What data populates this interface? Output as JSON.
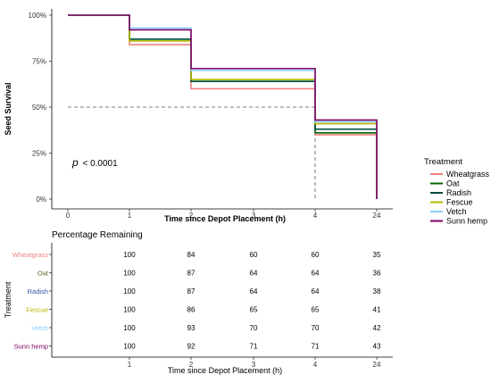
{
  "chart_data": [
    {
      "type": "line",
      "subtype": "step (Kaplan-Meier)",
      "x": [
        "0",
        "1",
        "2",
        "3",
        "4",
        "24"
      ],
      "xlabel": "Time since Depot Placement (h)",
      "ylabel": "Seed Survival",
      "yticks": [
        "0%",
        "25%",
        "50%",
        "75%",
        "100%"
      ],
      "ylim": [
        0,
        100
      ],
      "annotation": {
        "p_symbol": "p",
        "p_text": "< 0.0001"
      },
      "median_line": 50,
      "legend_title": "Treatment",
      "legend_position": "right",
      "series": [
        {
          "name": "Wheatgrass",
          "color": "#f08080",
          "values": [
            100,
            84,
            60,
            60,
            35,
            35
          ]
        },
        {
          "name": "Oat",
          "color": "#006400",
          "values": [
            100,
            87,
            64,
            64,
            36,
            36
          ]
        },
        {
          "name": "Radish",
          "color": "#004d40",
          "values": [
            100,
            87,
            64,
            64,
            38,
            38
          ]
        },
        {
          "name": "Fescue",
          "color": "#b8b800",
          "values": [
            100,
            86,
            65,
            65,
            41,
            41
          ]
        },
        {
          "name": "Vetch",
          "color": "#87cefa",
          "values": [
            100,
            93,
            70,
            70,
            42,
            42
          ]
        },
        {
          "name": "Sunn hemp",
          "color": "#800060",
          "values": [
            100,
            92,
            71,
            71,
            43,
            43
          ]
        }
      ]
    },
    {
      "type": "table",
      "title": "Percentage Remaining",
      "row_axis_label": "Treatment",
      "xlabel": "Time since Depot Placement (h)",
      "columns": [
        "1",
        "2",
        "3",
        "4",
        "24"
      ],
      "rows": [
        {
          "label": "Wheatgrass",
          "color": "#f08080",
          "cells": [
            "100",
            "84",
            "60",
            "60",
            "35"
          ]
        },
        {
          "label": "Oat",
          "color": "#556b2f",
          "cells": [
            "100",
            "87",
            "64",
            "64",
            "36"
          ]
        },
        {
          "label": "Radish",
          "color": "#3050a0",
          "cells": [
            "100",
            "87",
            "64",
            "64",
            "38"
          ]
        },
        {
          "label": "Fescue",
          "color": "#b8b800",
          "cells": [
            "100",
            "86",
            "65",
            "65",
            "41"
          ]
        },
        {
          "label": "Vetch",
          "color": "#87cefa",
          "cells": [
            "100",
            "93",
            "70",
            "70",
            "42"
          ]
        },
        {
          "label": "Sunn hemp",
          "color": "#800060",
          "cells": [
            "100",
            "92",
            "71",
            "71",
            "43"
          ]
        }
      ]
    }
  ]
}
